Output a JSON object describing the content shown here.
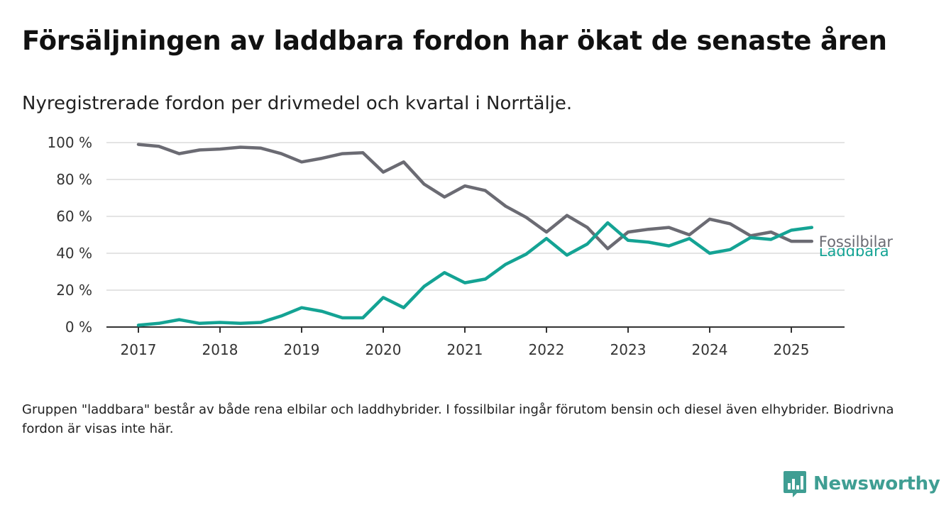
{
  "title": "Försäljningen av laddbara fordon har ökat de senaste åren",
  "subtitle": "Nyregistrerade fordon per drivmedel och kvartal i Norrtälje.",
  "note": "Gruppen \"laddbara\" består av både rena elbilar och laddhybrider. I fossilbilar ingår förutom bensin och diesel även elhybrider. Biodrivna fordon är visas inte här.",
  "brand": {
    "name": "Newsworthy",
    "color": "#3f9e93"
  },
  "chart_data": {
    "type": "line",
    "title": "Försäljningen av laddbara fordon har ökat de senaste åren",
    "subtitle": "Nyregistrerade fordon per drivmedel och kvartal i Norrtälje.",
    "xlabel": "",
    "ylabel": "",
    "x": [
      "2017 K1",
      "2017 K2",
      "2017 K3",
      "2017 K4",
      "2018 K1",
      "2018 K2",
      "2018 K3",
      "2018 K4",
      "2019 K1",
      "2019 K2",
      "2019 K3",
      "2019 K4",
      "2020 K1",
      "2020 K2",
      "2020 K3",
      "2020 K4",
      "2021 K1",
      "2021 K2",
      "2021 K3",
      "2021 K4",
      "2022 K1",
      "2022 K2",
      "2022 K3",
      "2022 K4",
      "2023 K1",
      "2023 K2",
      "2023 K3",
      "2023 K4",
      "2024 K1",
      "2024 K2",
      "2024 K3",
      "2024 K4",
      "2025 K1",
      "2025 K2"
    ],
    "x_ticks": [
      "2017",
      "2018",
      "2019",
      "2020",
      "2021",
      "2022",
      "2023",
      "2024",
      "2025"
    ],
    "y_ticks": [
      "0 %",
      "20 %",
      "40 %",
      "60 %",
      "80 %",
      "100 %"
    ],
    "ylim": [
      0,
      100
    ],
    "grid": true,
    "series": [
      {
        "name": "Fossilbilar",
        "color": "#6b6b73",
        "values": [
          99,
          98,
          94,
          96,
          96.5,
          97.5,
          97,
          94,
          89.5,
          91.5,
          94,
          94.5,
          84,
          89.5,
          77.5,
          70.5,
          76.5,
          74,
          65.5,
          59.5,
          51.5,
          60.5,
          54,
          42.5,
          51.5,
          53,
          54,
          50,
          58.5,
          56,
          49.5,
          51.5,
          46.5,
          46.5
        ]
      },
      {
        "name": "Laddbara",
        "color": "#14a394",
        "values": [
          1,
          2,
          4,
          2,
          2.5,
          2,
          2.5,
          6,
          10.5,
          8.5,
          5,
          5,
          16,
          10.5,
          22,
          29.5,
          24,
          26,
          34,
          39.5,
          48,
          39,
          45,
          56.5,
          47,
          46,
          44,
          48,
          40,
          42,
          48.5,
          47.5,
          52.5,
          54
        ]
      }
    ]
  }
}
